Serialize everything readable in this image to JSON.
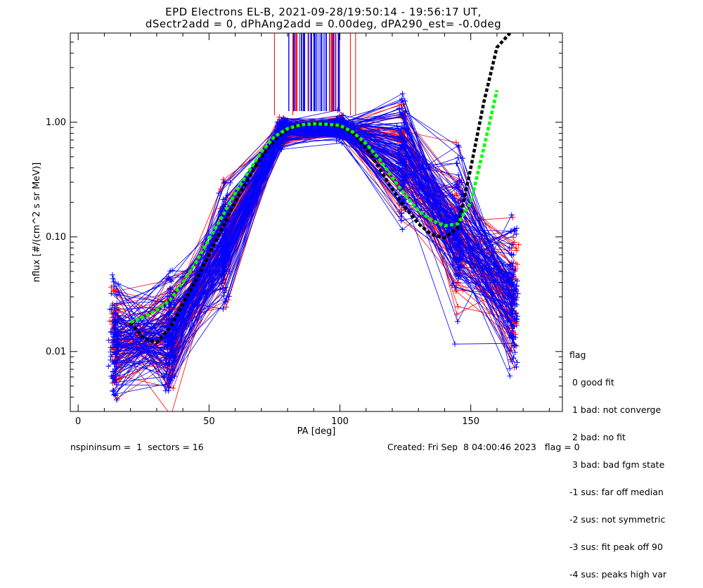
{
  "chart_data": {
    "type": "line",
    "title": "EPD Electrons EL-B, 2021-09-28/19:50:14 - 19:56:17 UT,",
    "subtitle": "dSectr2add = 0, dPhAng2add = 0.00deg, dPA290_est=  -0.0deg",
    "xlabel": "PA [deg]",
    "ylabel": "nflux [#/(cm^2 s sr MeV)]",
    "xlim": [
      -3,
      185
    ],
    "ylim": [
      0.003,
      6.0
    ],
    "yscale": "log",
    "x_ticks": [
      0,
      50,
      100,
      150
    ],
    "y_ticks": [
      {
        "v": 0.01,
        "label": "0.01"
      },
      {
        "v": 0.1,
        "label": "0.10"
      },
      {
        "v": 1.0,
        "label": "1.00"
      }
    ],
    "grid": false,
    "colors": {
      "series_a": "#ff0000",
      "series_b": "#0000ff",
      "fit_black": "#000000",
      "fit_green": "#00ff00"
    },
    "pa_bins": [
      14,
      35,
      56,
      78,
      100,
      124,
      145,
      166
    ],
    "typical_profile": [
      0.012,
      0.014,
      0.09,
      0.85,
      0.9,
      0.45,
      0.09,
      0.03
    ],
    "fit_black": {
      "x": [
        20,
        25,
        30,
        35,
        40,
        45,
        50,
        55,
        60,
        65,
        70,
        75,
        80,
        85,
        90,
        95,
        100,
        105,
        110,
        115,
        120,
        125,
        130,
        135,
        140,
        145,
        150,
        155,
        160,
        165
      ],
      "y": [
        0.018,
        0.013,
        0.012,
        0.016,
        0.026,
        0.042,
        0.07,
        0.12,
        0.2,
        0.32,
        0.5,
        0.7,
        0.87,
        0.95,
        0.97,
        0.96,
        0.93,
        0.8,
        0.6,
        0.4,
        0.26,
        0.18,
        0.13,
        0.105,
        0.098,
        0.12,
        0.4,
        1.5,
        4.5,
        6.0
      ]
    },
    "fit_green": {
      "x": [
        20,
        25,
        30,
        35,
        40,
        45,
        50,
        55,
        60,
        65,
        70,
        75,
        80,
        85,
        90,
        95,
        100,
        105,
        110,
        115,
        120,
        125,
        130,
        135,
        140,
        145,
        150,
        155,
        160
      ],
      "y": [
        0.018,
        0.02,
        0.023,
        0.028,
        0.04,
        0.06,
        0.095,
        0.15,
        0.24,
        0.37,
        0.55,
        0.75,
        0.88,
        0.95,
        0.97,
        0.96,
        0.94,
        0.82,
        0.65,
        0.48,
        0.33,
        0.23,
        0.17,
        0.14,
        0.125,
        0.13,
        0.2,
        0.6,
        1.9
      ]
    }
  },
  "legend": {
    "title": "flag",
    "items": [
      " 0 good fit",
      " 1 bad: not converge",
      " 2 bad: no fit",
      " 3 bad: bad fgm state",
      "-1 sus: far off median",
      "-2 sus: not symmetric",
      "-3 sus: fit peak off 90",
      "-4 sus: peaks high var"
    ]
  },
  "footer": {
    "left": "nspininsum =  1  sectors = 16",
    "right": "Created: Fri Sep  8 04:00:46 2023   flag = 0"
  }
}
